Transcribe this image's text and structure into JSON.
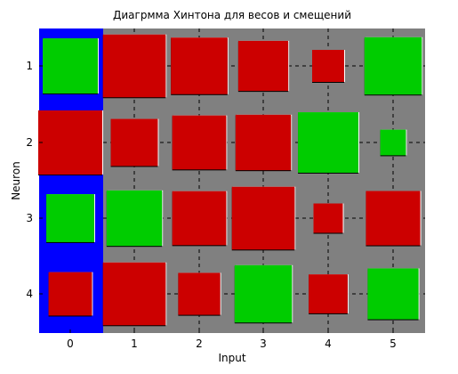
{
  "chart_data": {
    "type": "hinton",
    "title": "Диагрмма Хинтона для весов и смещений",
    "xlabel": "Input",
    "ylabel": "Neuron",
    "x_ticks": [
      "0",
      "1",
      "2",
      "3",
      "4",
      "5"
    ],
    "y_ticks": [
      "1",
      "2",
      "3",
      "4"
    ],
    "bias_column": 0,
    "grid": true,
    "colors": {
      "background": "#808080",
      "bias_background": "#0000ff",
      "positive": "#00cc00",
      "negative": "#cc0000"
    },
    "matrix": [
      [
        0.74,
        -0.96,
        -0.78,
        -0.61,
        -0.25,
        0.8
      ],
      [
        -1.0,
        -0.54,
        -0.71,
        -0.75,
        0.89,
        0.16
      ],
      [
        0.56,
        0.75,
        -0.71,
        -0.96,
        -0.21,
        -0.72
      ],
      [
        -0.46,
        -0.96,
        -0.43,
        0.8,
        -0.37,
        0.63
      ]
    ]
  }
}
